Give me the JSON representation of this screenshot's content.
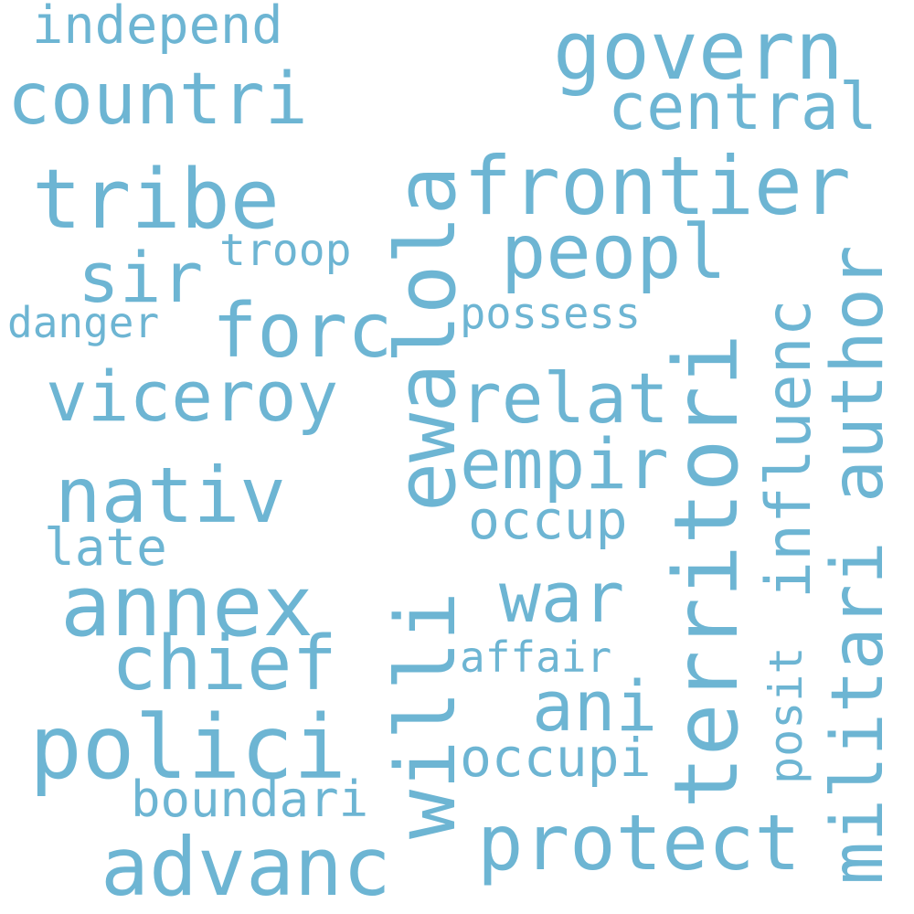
{
  "colors": {
    "word": "#6db5d3",
    "background": "#ffffff"
  },
  "words": {
    "willi": "willi",
    "ewa": "ewa",
    "lola": "lola",
    "frontier": "frontier",
    "govern": "govern",
    "countri": "countri",
    "tribe": "tribe",
    "annex": "annex",
    "polici": "polici",
    "territori": "territori",
    "protect": "protect",
    "advanc": "advanc",
    "nativ": "nativ",
    "viceroy": "viceroy",
    "forc": "forc",
    "peopl": "peopl",
    "relat": "relat",
    "empir": "empir",
    "militari": "militari",
    "author": "author",
    "influenc": "influenc",
    "chief": "chief",
    "central": "central",
    "sir": "sir",
    "war": "war",
    "ani": "ani",
    "occup": "occup",
    "occupi": "occupi",
    "posit": "posit",
    "boundari": "boundari",
    "affair": "affair",
    "possess": "possess",
    "troop": "troop",
    "danger": "danger",
    "late": "late",
    "independ": "independ"
  }
}
